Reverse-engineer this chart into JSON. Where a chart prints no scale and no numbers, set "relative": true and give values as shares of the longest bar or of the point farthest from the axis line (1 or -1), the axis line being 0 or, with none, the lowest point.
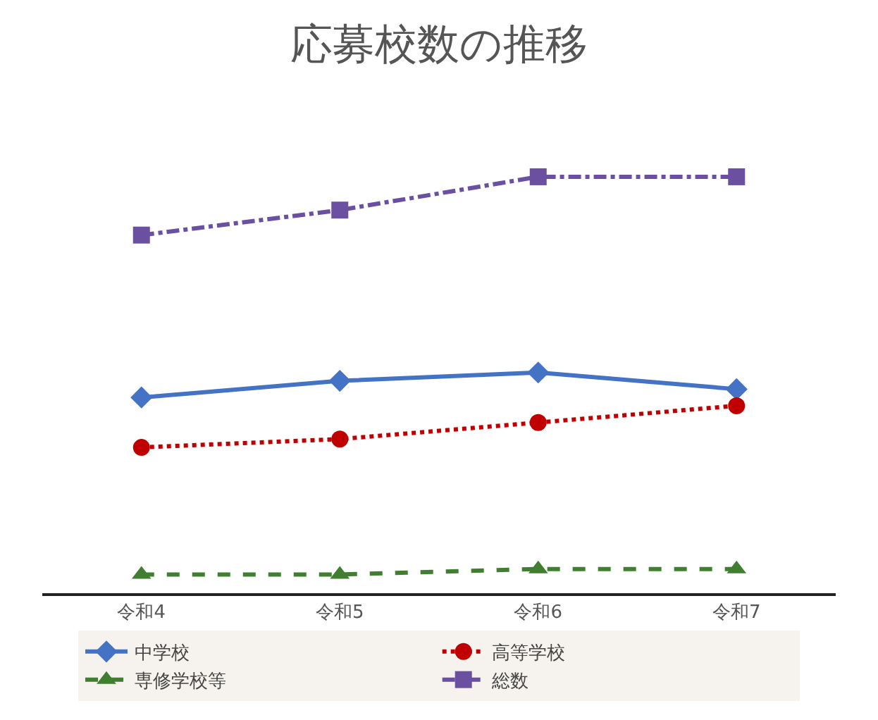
{
  "chart_data": {
    "type": "line",
    "title": "応募校数の推移",
    "relative": true,
    "categories": [
      "令和4",
      "令和5",
      "令和6",
      "令和7"
    ],
    "series": [
      {
        "name": "中学校",
        "color": "#4472c4",
        "values": [
          0.47,
          0.51,
          0.53,
          0.49
        ],
        "marker": "diamond",
        "line_style": "solid"
      },
      {
        "name": "高等学校",
        "color": "#c00000",
        "values": [
          0.35,
          0.37,
          0.41,
          0.45
        ],
        "marker": "circle",
        "line_style": "dotted"
      },
      {
        "name": "専修学校等",
        "color": "#3f7f2f",
        "values": [
          0.045,
          0.045,
          0.058,
          0.058
        ],
        "marker": "triangle",
        "line_style": "dashed"
      },
      {
        "name": "総数",
        "color": "#6b4fa0",
        "values": [
          0.86,
          0.92,
          1,
          1
        ],
        "marker": "square",
        "line_style": "dashdot"
      }
    ],
    "legend": "bottom"
  }
}
